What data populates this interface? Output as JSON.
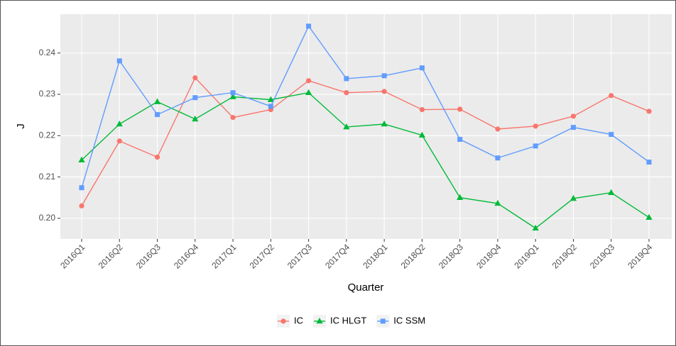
{
  "chart_data": {
    "type": "line",
    "categories": [
      "2016Q1",
      "2016Q2",
      "2016Q3",
      "2016Q4",
      "2017Q1",
      "2017Q2",
      "2017Q3",
      "2017Q4",
      "2018Q1",
      "2018Q2",
      "2018Q3",
      "2018Q4",
      "2019Q1",
      "2019Q2",
      "2019Q3",
      "2019Q4"
    ],
    "series": [
      {
        "name": "IC",
        "color": "#f8766d",
        "marker": "circle",
        "values": [
          0.203,
          0.2187,
          0.2148,
          0.234,
          0.2244,
          0.2263,
          0.2333,
          0.2304,
          0.2307,
          0.2263,
          0.2264,
          0.2216,
          0.2223,
          0.2247,
          0.2297,
          0.2259
        ]
      },
      {
        "name": "IC HLGT",
        "color": "#00ba38",
        "marker": "triangle",
        "values": [
          0.2141,
          0.2228,
          0.2282,
          0.224,
          0.2294,
          0.2287,
          0.2304,
          0.2221,
          0.2228,
          0.2201,
          0.205,
          0.2036,
          0.1976,
          0.2048,
          0.2062,
          0.2002
        ]
      },
      {
        "name": "IC SSM",
        "color": "#619cff",
        "marker": "square",
        "values": [
          0.2074,
          0.2381,
          0.2251,
          0.2292,
          0.2304,
          0.2271,
          0.2465,
          0.2338,
          0.2345,
          0.2364,
          0.2191,
          0.2146,
          0.2175,
          0.222,
          0.2203,
          0.2136
        ]
      }
    ],
    "xlabel": "Quarter",
    "ylabel": "J",
    "ylim": [
      0.195,
      0.2494
    ],
    "yticks": [
      {
        "value": 0.2,
        "label": "0.20"
      },
      0.21,
      0.22,
      0.23,
      0.24
    ],
    "grid": true,
    "legend": "bottom"
  }
}
